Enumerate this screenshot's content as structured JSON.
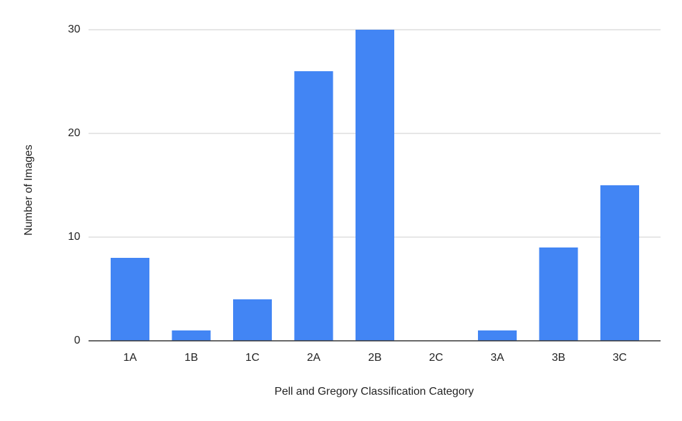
{
  "chart_data": {
    "type": "bar",
    "x_label": "Pell and Gregory Classification Category",
    "y_label": "Number of Images",
    "categories": [
      "1A",
      "1B",
      "1C",
      "2A",
      "2B",
      "2C",
      "3A",
      "3B",
      "3C"
    ],
    "values": [
      8,
      1,
      4,
      26,
      30,
      0,
      1,
      9,
      15
    ],
    "color": "#4285f4",
    "ylim": [
      0,
      30
    ],
    "yticks": [
      0,
      10,
      20,
      30
    ],
    "grid": true
  }
}
